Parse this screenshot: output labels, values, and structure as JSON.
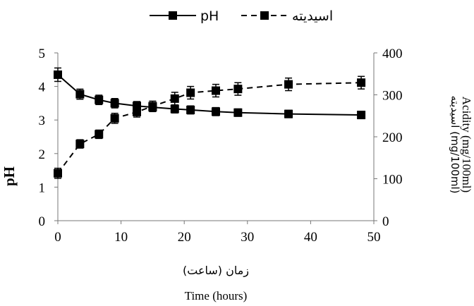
{
  "chart_data": {
    "type": "line",
    "x": [
      0,
      3.5,
      6.5,
      9,
      12.5,
      15,
      18.5,
      21,
      25,
      28.5,
      36.5,
      48
    ],
    "xlim": [
      0,
      50
    ],
    "xticks": [
      0,
      10,
      20,
      30,
      40,
      50
    ],
    "ylim_left": [
      0,
      5
    ],
    "yticks_left": [
      0,
      1,
      2,
      3,
      4,
      5
    ],
    "ylim_right": [
      0,
      400
    ],
    "yticks_right": [
      0,
      100,
      200,
      300,
      400
    ],
    "xlabel_fa": "زمان (ساعت)",
    "xlabel_en": "Time (hours)",
    "ylabel_left": "pH",
    "ylabel_right_en": "Acidity (mg/100ml)",
    "ylabel_right_fa": "اسیدیته (mg/100ml)",
    "legend_position": "top-center",
    "grid": false,
    "series": [
      {
        "name": "pH",
        "axis": "left",
        "line_style": "solid",
        "marker": "square",
        "color": "#000000",
        "values": [
          4.35,
          3.77,
          3.6,
          3.5,
          3.42,
          3.38,
          3.33,
          3.3,
          3.25,
          3.22,
          3.18,
          3.15
        ],
        "errors": [
          0.2,
          0.15,
          0.14,
          0.14,
          0.13,
          0.13,
          0.12,
          0.12,
          0.12,
          0.11,
          0.11,
          0.11
        ]
      },
      {
        "name": "اسیدیته",
        "axis": "right",
        "line_style": "dashed",
        "marker": "square",
        "color": "#000000",
        "values": [
          113,
          183,
          206,
          244,
          259,
          273,
          291,
          305,
          310,
          314,
          325,
          329
        ],
        "errors": [
          12,
          10,
          10,
          12,
          12,
          12,
          15,
          15,
          15,
          15,
          15,
          15
        ]
      }
    ]
  }
}
